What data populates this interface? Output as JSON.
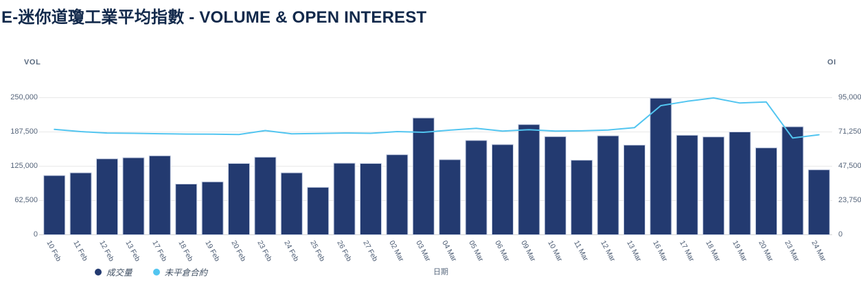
{
  "chart_data": {
    "type": "bar",
    "title": "E-迷你道瓊工業平均指數 - VOLUME & OPEN INTEREST",
    "xlabel": "日期",
    "ylabel_left": "VOL",
    "ylabel_right": "OI",
    "grid": "horizontal",
    "legend_position": "bottom-left",
    "categories": [
      "10 Feb",
      "11 Feb",
      "12 Feb",
      "13 Feb",
      "17 Feb",
      "18 Feb",
      "19 Feb",
      "20 Feb",
      "23 Feb",
      "24 Feb",
      "25 Feb",
      "26 Feb",
      "27 Feb",
      "02 Mar",
      "03 Mar",
      "04 Mar",
      "05 Mar",
      "06 Mar",
      "09 Mar",
      "10 Mar",
      "11 Mar",
      "12 Mar",
      "13 Mar",
      "16 Mar",
      "17 Mar",
      "18 Mar",
      "19 Mar",
      "20 Mar",
      "23 Mar",
      "24 Mar"
    ],
    "series": [
      {
        "name": "成交量",
        "type": "bar",
        "axis": "left",
        "color": "#233a70",
        "border_color": "#c7d0e4",
        "values": [
          108000,
          113000,
          138500,
          140500,
          144000,
          92500,
          96500,
          130000,
          141500,
          113000,
          86500,
          130500,
          130000,
          146000,
          213000,
          137000,
          172000,
          164500,
          201000,
          179000,
          136000,
          180500,
          163500,
          249000,
          181500,
          178500,
          187500,
          158500,
          197000,
          118500
        ]
      },
      {
        "name": "未平倉合約",
        "type": "line",
        "axis": "right",
        "color": "#52c5f0",
        "values": [
          73000,
          71500,
          70500,
          70300,
          70000,
          69800,
          69700,
          69500,
          72200,
          69900,
          70200,
          70500,
          70300,
          71500,
          71000,
          72500,
          73700,
          71800,
          72800,
          71800,
          72000,
          72600,
          74200,
          89500,
          92500,
          94800,
          91300,
          92000,
          67000,
          69300
        ]
      }
    ],
    "y_left": {
      "min": 0,
      "max": 250000,
      "ticks": [
        "0",
        "62,500",
        "125,000",
        "187,500",
        "250,000"
      ]
    },
    "y_right": {
      "min": 0,
      "max": 95000,
      "ticks": [
        "0",
        "23,750",
        "47,500",
        "71,250",
        "95,000"
      ]
    },
    "colors": {
      "title_text": "#12294b",
      "axis_text": "#55647a",
      "x_tick_text": "#4a5a72",
      "gridline": "#e8e8e8",
      "baseline": "#d4d4d4",
      "background": "#ffffff"
    }
  }
}
